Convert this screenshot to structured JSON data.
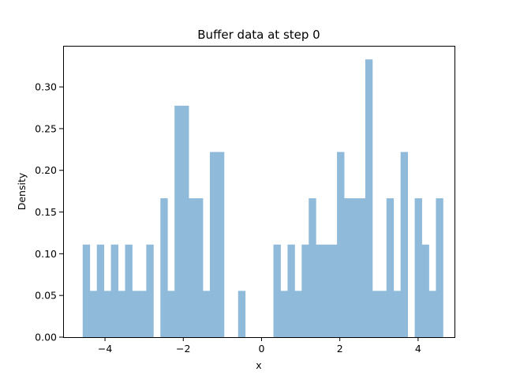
{
  "chart_data": {
    "type": "bar",
    "title": "Buffer data at step 0",
    "xlabel": "x",
    "ylabel": "Density",
    "xlim": [
      -5.07,
      4.93
    ],
    "ylim": [
      0,
      0.3493
    ],
    "xticks": [
      -4,
      -2,
      0,
      2,
      4
    ],
    "xtick_labels": [
      "−4",
      "−2",
      "0",
      "2",
      "4"
    ],
    "yticks": [
      0.0,
      0.05,
      0.1,
      0.15,
      0.2,
      0.25,
      0.3
    ],
    "ytick_labels": [
      "0.00",
      "0.05",
      "0.10",
      "0.15",
      "0.20",
      "0.25",
      "0.30"
    ],
    "bin_start": -4.57,
    "bin_width": 0.1805,
    "bar_color": "#8fbad9",
    "grid": false,
    "values": [
      0.111,
      0.0555,
      0.111,
      0.0555,
      0.111,
      0.0555,
      0.111,
      0.0555,
      0.0555,
      0.111,
      0,
      0.1665,
      0.0555,
      0.2775,
      0.2775,
      0.1665,
      0.1665,
      0.0555,
      0.222,
      0.222,
      0,
      0,
      0.0555,
      0,
      0,
      0,
      0,
      0.111,
      0.0555,
      0.111,
      0.0555,
      0.111,
      0.1665,
      0.111,
      0.111,
      0.111,
      0.222,
      0.1665,
      0.1665,
      0.1665,
      0.333,
      0.0555,
      0.0555,
      0.1665,
      0.0555,
      0.222,
      0,
      0.1665,
      0.111,
      0.0555,
      0.1665
    ]
  }
}
